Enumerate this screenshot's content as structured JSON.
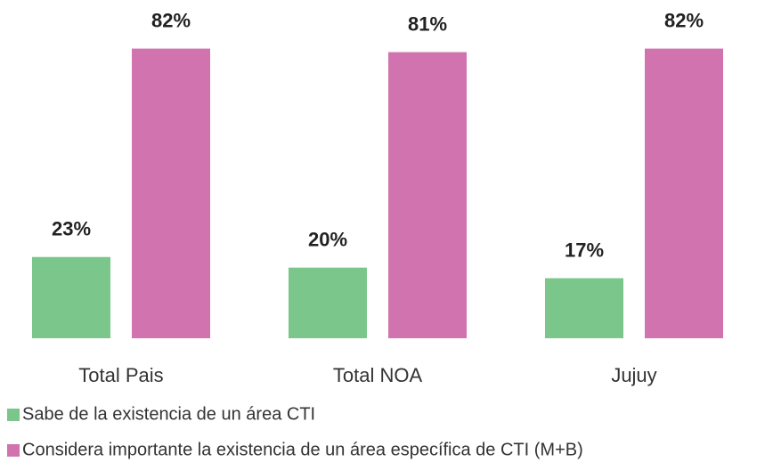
{
  "chart_data": {
    "type": "bar",
    "categories": [
      "Total Pais",
      "Total NOA",
      "Jujuy"
    ],
    "series": [
      {
        "name": "Sabe de la existencia de un área CTI",
        "color": "#7ac68b",
        "values": [
          23,
          20,
          17
        ],
        "value_labels": [
          "23%",
          "20%",
          "17%"
        ]
      },
      {
        "name": "Considera importante la existencia de un área específica de CTI (M+B)",
        "color": "#d073ae",
        "values": [
          82,
          81,
          82
        ],
        "value_labels": [
          "82%",
          "81%",
          "82%"
        ]
      }
    ],
    "ylim": [
      0,
      95
    ],
    "legend": "bottom-left"
  }
}
